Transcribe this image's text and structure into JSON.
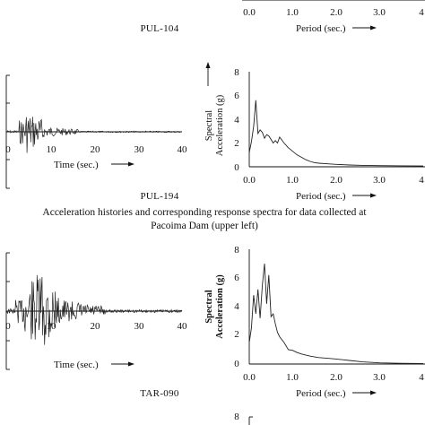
{
  "caption": {
    "line1": "Acceleration histories and corresponding response spectra for data collected at",
    "line2": "Pacoima Dam (upper left)"
  },
  "records": [
    "PUL-104",
    "PUL-194",
    "TAR-090"
  ],
  "time_axis": {
    "label": "Time (sec.)",
    "ticks": [
      "0",
      "10",
      "20",
      "30",
      "40"
    ]
  },
  "period_axis": {
    "label": "Period (sec.)",
    "ticks": [
      "0.0",
      "1.0",
      "2.0",
      "3.0",
      "4"
    ]
  },
  "spectral_axis": {
    "label_line1": "Spectral",
    "label_line2": "Acceleration (g)",
    "ticks": [
      "0",
      "2",
      "4",
      "6",
      "8"
    ]
  },
  "chart_data": [
    {
      "type": "line",
      "record": "PUL-194",
      "title": "",
      "xlabel": "Period (sec.)",
      "ylabel": "Spectral Acceleration (g)",
      "xlim": [
        0,
        4
      ],
      "ylim": [
        0,
        8
      ],
      "x": [
        0.0,
        0.05,
        0.1,
        0.15,
        0.2,
        0.25,
        0.3,
        0.35,
        0.4,
        0.45,
        0.5,
        0.55,
        0.6,
        0.65,
        0.7,
        0.8,
        0.9,
        1.0,
        1.1,
        1.2,
        1.3,
        1.4,
        1.5,
        1.6,
        1.8,
        2.0,
        2.3,
        2.6,
        3.0,
        3.5,
        4.0
      ],
      "y": [
        1.2,
        2.1,
        3.4,
        5.6,
        2.8,
        3.1,
        2.9,
        2.4,
        2.7,
        2.6,
        2.3,
        2.0,
        2.2,
        2.0,
        2.5,
        2.0,
        1.6,
        1.3,
        1.0,
        0.8,
        0.6,
        0.45,
        0.35,
        0.3,
        0.25,
        0.2,
        0.15,
        0.12,
        0.1,
        0.08,
        0.07
      ]
    },
    {
      "type": "line",
      "record": "TAR-090",
      "title": "",
      "xlabel": "Period (sec.)",
      "ylabel": "Spectral Acceleration (g)",
      "xlim": [
        0,
        4
      ],
      "ylim": [
        0,
        8
      ],
      "x": [
        0.0,
        0.05,
        0.1,
        0.15,
        0.2,
        0.25,
        0.3,
        0.35,
        0.4,
        0.45,
        0.5,
        0.55,
        0.6,
        0.65,
        0.7,
        0.8,
        0.9,
        1.0,
        1.1,
        1.2,
        1.4,
        1.6,
        1.8,
        2.0,
        2.3,
        2.6,
        3.0,
        3.5,
        4.0
      ],
      "y": [
        1.5,
        2.5,
        4.8,
        3.5,
        5.2,
        3.2,
        5.5,
        7.0,
        4.2,
        6.2,
        3.3,
        3.5,
        2.8,
        2.2,
        1.9,
        1.5,
        1.0,
        0.95,
        0.8,
        0.7,
        0.55,
        0.45,
        0.4,
        0.35,
        0.25,
        0.15,
        0.08,
        0.05,
        0.04
      ]
    }
  ]
}
